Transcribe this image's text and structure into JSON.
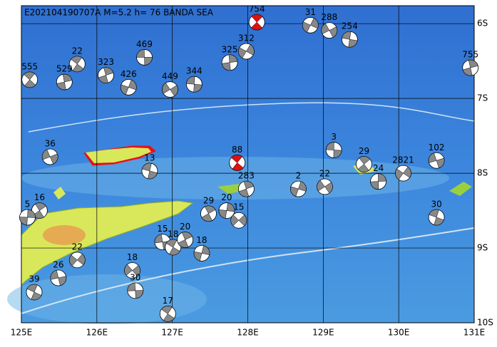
{
  "map": {
    "title": "E202104190707A  M=5.2  h=  76  BANDA SEA",
    "xticks": [
      {
        "value": 125,
        "label": "125E"
      },
      {
        "value": 126,
        "label": "126E"
      },
      {
        "value": 127,
        "label": "127E"
      },
      {
        "value": 128,
        "label": "128E"
      },
      {
        "value": 129,
        "label": "129E"
      },
      {
        "value": 130,
        "label": "130E"
      },
      {
        "value": 131,
        "label": "131E"
      }
    ],
    "yticks": [
      {
        "value": -6,
        "label": "6S"
      },
      {
        "value": -7,
        "label": "7S"
      },
      {
        "value": -8,
        "label": "8S"
      },
      {
        "value": -9,
        "label": "9S"
      },
      {
        "value": -10,
        "label": "10S"
      }
    ],
    "xlim": [
      125,
      131
    ],
    "ylim": [
      -10,
      -5.76
    ],
    "events": [
      {
        "depth": "469",
        "lon": 126.63,
        "lat": -6.45,
        "color": "#888888"
      },
      {
        "depth": "22",
        "lon": 125.74,
        "lat": -6.54,
        "color": "#888888"
      },
      {
        "depth": "323",
        "lon": 126.12,
        "lat": -6.69,
        "color": "#888888"
      },
      {
        "depth": "426",
        "lon": 126.42,
        "lat": -6.85,
        "color": "#888888"
      },
      {
        "depth": "449",
        "lon": 126.97,
        "lat": -6.88,
        "color": "#888888"
      },
      {
        "depth": "344",
        "lon": 127.29,
        "lat": -6.81,
        "color": "#888888"
      },
      {
        "depth": "555",
        "lon": 125.11,
        "lat": -6.75,
        "color": "#888888"
      },
      {
        "depth": "529",
        "lon": 125.57,
        "lat": -6.78,
        "color": "#888888"
      },
      {
        "depth": "31",
        "lon": 128.83,
        "lat": -6.02,
        "color": "#888888"
      },
      {
        "depth": "288",
        "lon": 129.08,
        "lat": -6.09,
        "color": "#888888"
      },
      {
        "depth": "254",
        "lon": 129.35,
        "lat": -6.21,
        "color": "#888888"
      },
      {
        "depth": "754",
        "lon": 128.12,
        "lat": -5.98,
        "color": "#e01010"
      },
      {
        "depth": "325",
        "lon": 127.76,
        "lat": -6.52,
        "color": "#888888"
      },
      {
        "depth": "312",
        "lon": 127.98,
        "lat": -6.37,
        "color": "#888888"
      },
      {
        "depth": "36",
        "lon": 125.38,
        "lat": -7.78,
        "color": "#888888"
      },
      {
        "depth": "13",
        "lon": 126.7,
        "lat": -7.97,
        "color": "#888888"
      },
      {
        "depth": "29",
        "lon": 129.54,
        "lat": -7.88,
        "color": "#888888"
      },
      {
        "depth": "24",
        "lon": 129.73,
        "lat": -8.11,
        "color": "#888888"
      },
      {
        "depth": "2821",
        "lon": 130.06,
        "lat": -8.0,
        "color": "#888888"
      },
      {
        "depth": "102",
        "lon": 130.5,
        "lat": -7.83,
        "color": "#888888"
      },
      {
        "depth": "30",
        "lon": 130.5,
        "lat": -8.59,
        "color": "#888888"
      },
      {
        "depth": "16",
        "lon": 125.24,
        "lat": -8.5,
        "color": "#888888"
      },
      {
        "depth": "5",
        "lon": 125.08,
        "lat": -8.59,
        "color": "#888888"
      },
      {
        "depth": "22",
        "lon": 125.74,
        "lat": -9.16,
        "color": "#888888"
      },
      {
        "depth": "26",
        "lon": 125.49,
        "lat": -9.4,
        "color": "#888888"
      },
      {
        "depth": "39",
        "lon": 125.17,
        "lat": -9.59,
        "color": "#888888"
      },
      {
        "depth": "29",
        "lon": 127.48,
        "lat": -8.54,
        "color": "#888888"
      },
      {
        "depth": "20",
        "lon": 127.72,
        "lat": -8.5,
        "color": "#888888"
      },
      {
        "depth": "15",
        "lon": 127.88,
        "lat": -8.63,
        "color": "#888888"
      },
      {
        "depth": "15",
        "lon": 126.87,
        "lat": -8.92,
        "color": "#888888"
      },
      {
        "depth": "18",
        "lon": 127.01,
        "lat": -8.99,
        "color": "#888888"
      },
      {
        "depth": "20",
        "lon": 127.17,
        "lat": -8.89,
        "color": "#888888"
      },
      {
        "depth": "18",
        "lon": 127.39,
        "lat": -9.07,
        "color": "#888888"
      },
      {
        "depth": "18",
        "lon": 126.47,
        "lat": -9.3,
        "color": "#888888"
      },
      {
        "depth": "30",
        "lon": 126.51,
        "lat": -9.57,
        "color": "#888888"
      },
      {
        "depth": "17",
        "lon": 126.94,
        "lat": -9.88,
        "color": "#888888"
      },
      {
        "depth": "283",
        "lon": 127.98,
        "lat": -8.21,
        "color": "#888888"
      },
      {
        "depth": "2",
        "lon": 128.67,
        "lat": -8.21,
        "color": "#888888"
      },
      {
        "depth": "22",
        "lon": 129.02,
        "lat": -8.18,
        "color": "#888888"
      },
      {
        "depth": "3",
        "lon": 129.14,
        "lat": -7.69,
        "color": "#888888"
      },
      {
        "depth": "88",
        "lon": 127.86,
        "lat": -7.86,
        "color": "#e01010"
      },
      {
        "depth": "755",
        "lon": 130.95,
        "lat": -6.59,
        "color": "#888888"
      }
    ]
  }
}
